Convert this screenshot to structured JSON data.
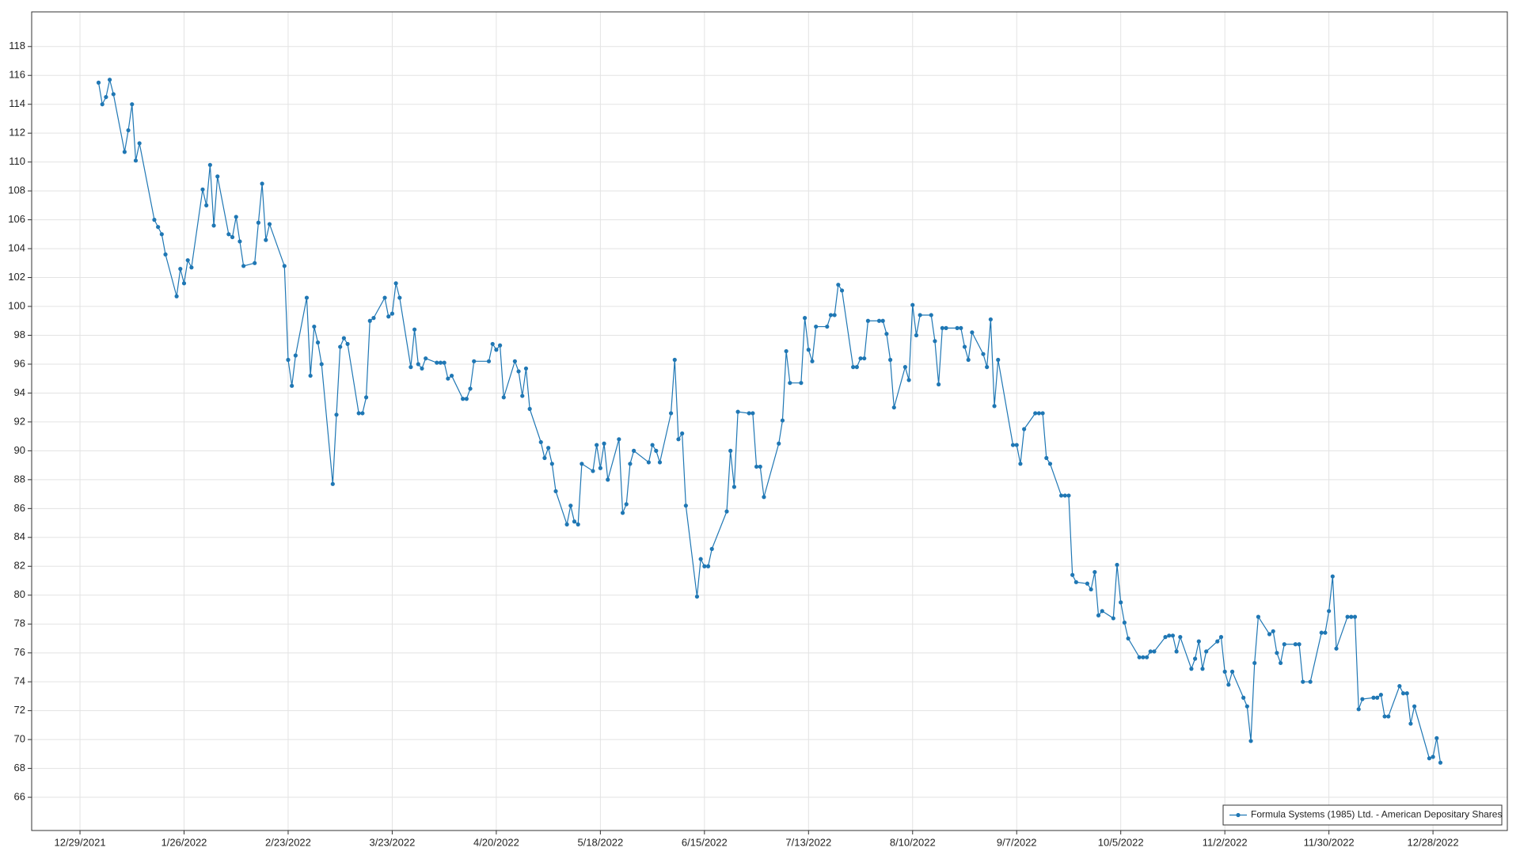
{
  "chart_data": {
    "type": "line",
    "x": [
      "2022-01-03",
      "2022-01-04",
      "2022-01-05",
      "2022-01-06",
      "2022-01-07",
      "2022-01-10",
      "2022-01-11",
      "2022-01-12",
      "2022-01-13",
      "2022-01-14",
      "2022-01-18",
      "2022-01-19",
      "2022-01-20",
      "2022-01-21",
      "2022-01-24",
      "2022-01-25",
      "2022-01-26",
      "2022-01-27",
      "2022-01-28",
      "2022-01-31",
      "2022-02-01",
      "2022-02-02",
      "2022-02-03",
      "2022-02-04",
      "2022-02-07",
      "2022-02-08",
      "2022-02-09",
      "2022-02-10",
      "2022-02-11",
      "2022-02-14",
      "2022-02-15",
      "2022-02-16",
      "2022-02-17",
      "2022-02-18",
      "2022-02-22",
      "2022-02-23",
      "2022-02-24",
      "2022-02-25",
      "2022-02-28",
      "2022-03-01",
      "2022-03-02",
      "2022-03-03",
      "2022-03-04",
      "2022-03-07",
      "2022-03-08",
      "2022-03-09",
      "2022-03-10",
      "2022-03-11",
      "2022-03-14",
      "2022-03-15",
      "2022-03-16",
      "2022-03-17",
      "2022-03-18",
      "2022-03-21",
      "2022-03-22",
      "2022-03-23",
      "2022-03-24",
      "2022-03-25",
      "2022-03-28",
      "2022-03-29",
      "2022-03-30",
      "2022-03-31",
      "2022-04-01",
      "2022-04-04",
      "2022-04-05",
      "2022-04-06",
      "2022-04-07",
      "2022-04-08",
      "2022-04-11",
      "2022-04-12",
      "2022-04-13",
      "2022-04-14",
      "2022-04-18",
      "2022-04-19",
      "2022-04-20",
      "2022-04-21",
      "2022-04-22",
      "2022-04-25",
      "2022-04-26",
      "2022-04-27",
      "2022-04-28",
      "2022-04-29",
      "2022-05-02",
      "2022-05-03",
      "2022-05-04",
      "2022-05-05",
      "2022-05-06",
      "2022-05-09",
      "2022-05-10",
      "2022-05-11",
      "2022-05-12",
      "2022-05-13",
      "2022-05-16",
      "2022-05-17",
      "2022-05-18",
      "2022-05-19",
      "2022-05-20",
      "2022-05-23",
      "2022-05-24",
      "2022-05-25",
      "2022-05-26",
      "2022-05-27",
      "2022-05-31",
      "2022-06-01",
      "2022-06-02",
      "2022-06-03",
      "2022-06-06",
      "2022-06-07",
      "2022-06-08",
      "2022-06-09",
      "2022-06-10",
      "2022-06-13",
      "2022-06-14",
      "2022-06-15",
      "2022-06-16",
      "2022-06-17",
      "2022-06-21",
      "2022-06-22",
      "2022-06-23",
      "2022-06-24",
      "2022-06-27",
      "2022-06-28",
      "2022-06-29",
      "2022-06-30",
      "2022-07-01",
      "2022-07-05",
      "2022-07-06",
      "2022-07-07",
      "2022-07-08",
      "2022-07-11",
      "2022-07-12",
      "2022-07-13",
      "2022-07-14",
      "2022-07-15",
      "2022-07-18",
      "2022-07-19",
      "2022-07-20",
      "2022-07-21",
      "2022-07-22",
      "2022-07-25",
      "2022-07-26",
      "2022-07-27",
      "2022-07-28",
      "2022-07-29",
      "2022-08-01",
      "2022-08-02",
      "2022-08-03",
      "2022-08-04",
      "2022-08-05",
      "2022-08-08",
      "2022-08-09",
      "2022-08-10",
      "2022-08-11",
      "2022-08-12",
      "2022-08-15",
      "2022-08-16",
      "2022-08-17",
      "2022-08-18",
      "2022-08-19",
      "2022-08-22",
      "2022-08-23",
      "2022-08-24",
      "2022-08-25",
      "2022-08-26",
      "2022-08-29",
      "2022-08-30",
      "2022-08-31",
      "2022-09-01",
      "2022-09-02",
      "2022-09-06",
      "2022-09-07",
      "2022-09-08",
      "2022-09-09",
      "2022-09-12",
      "2022-09-13",
      "2022-09-14",
      "2022-09-15",
      "2022-09-16",
      "2022-09-19",
      "2022-09-20",
      "2022-09-21",
      "2022-09-22",
      "2022-09-23",
      "2022-09-26",
      "2022-09-27",
      "2022-09-28",
      "2022-09-29",
      "2022-09-30",
      "2022-10-03",
      "2022-10-04",
      "2022-10-05",
      "2022-10-06",
      "2022-10-07",
      "2022-10-10",
      "2022-10-11",
      "2022-10-12",
      "2022-10-13",
      "2022-10-14",
      "2022-10-17",
      "2022-10-18",
      "2022-10-19",
      "2022-10-20",
      "2022-10-21",
      "2022-10-24",
      "2022-10-25",
      "2022-10-26",
      "2022-10-27",
      "2022-10-28",
      "2022-10-31",
      "2022-11-01",
      "2022-11-02",
      "2022-11-03",
      "2022-11-04",
      "2022-11-07",
      "2022-11-08",
      "2022-11-09",
      "2022-11-10",
      "2022-11-11",
      "2022-11-14",
      "2022-11-15",
      "2022-11-16",
      "2022-11-17",
      "2022-11-18",
      "2022-11-21",
      "2022-11-22",
      "2022-11-23",
      "2022-11-25",
      "2022-11-28",
      "2022-11-29",
      "2022-11-30",
      "2022-12-01",
      "2022-12-02",
      "2022-12-05",
      "2022-12-06",
      "2022-12-07",
      "2022-12-08",
      "2022-12-09",
      "2022-12-12",
      "2022-12-13",
      "2022-12-14",
      "2022-12-15",
      "2022-12-16",
      "2022-12-19",
      "2022-12-20",
      "2022-12-21",
      "2022-12-22",
      "2022-12-23",
      "2022-12-27",
      "2022-12-28",
      "2022-12-29",
      "2022-12-30"
    ],
    "series": [
      {
        "name": "Formula Systems (1985) Ltd. - American Depositary Shares",
        "color": "#1f77b4",
        "values": [
          115.5,
          114.0,
          114.5,
          115.7,
          114.7,
          110.7,
          112.2,
          114.0,
          110.1,
          111.3,
          106.0,
          105.5,
          105.0,
          103.6,
          100.7,
          102.6,
          101.6,
          103.2,
          102.7,
          108.1,
          107.0,
          109.8,
          105.6,
          109.0,
          105.0,
          104.8,
          106.2,
          104.5,
          102.8,
          103.0,
          105.8,
          108.5,
          104.6,
          105.7,
          102.8,
          96.3,
          94.5,
          96.6,
          100.6,
          95.2,
          98.6,
          97.5,
          96.0,
          87.7,
          92.5,
          97.2,
          97.8,
          97.4,
          92.6,
          92.6,
          93.7,
          99.0,
          99.2,
          100.6,
          99.3,
          99.5,
          101.6,
          100.6,
          95.8,
          98.4,
          96.0,
          95.7,
          96.4,
          96.1,
          96.1,
          96.1,
          95.0,
          95.2,
          93.6,
          93.6,
          94.3,
          96.2,
          96.2,
          97.4,
          97.0,
          97.3,
          93.7,
          96.2,
          95.5,
          93.8,
          95.7,
          92.9,
          90.6,
          89.5,
          90.2,
          89.1,
          87.2,
          84.9,
          86.2,
          85.1,
          84.9,
          89.1,
          88.6,
          90.4,
          88.8,
          90.5,
          88.0,
          90.8,
          85.7,
          86.3,
          89.1,
          90.0,
          89.2,
          90.4,
          90.0,
          89.2,
          92.6,
          96.3,
          90.8,
          91.2,
          86.2,
          79.9,
          82.5,
          82.0,
          82.0,
          83.2,
          85.8,
          90.0,
          87.5,
          92.7,
          92.6,
          92.6,
          88.9,
          88.9,
          86.8,
          90.5,
          92.1,
          96.9,
          94.7,
          94.7,
          99.2,
          97.0,
          96.2,
          98.6,
          98.6,
          99.4,
          99.4,
          101.5,
          101.1,
          95.8,
          95.8,
          96.4,
          96.4,
          99.0,
          99.0,
          99.0,
          98.1,
          96.3,
          93.0,
          95.8,
          94.9,
          100.1,
          98.0,
          99.4,
          99.4,
          97.6,
          94.6,
          98.5,
          98.5,
          98.5,
          98.5,
          97.2,
          96.3,
          98.2,
          96.7,
          95.8,
          99.1,
          93.1,
          96.3,
          90.4,
          90.4,
          89.1,
          91.5,
          92.6,
          92.6,
          92.6,
          89.5,
          89.1,
          86.9,
          86.9,
          86.9,
          81.4,
          80.9,
          80.8,
          80.4,
          81.6,
          78.6,
          78.9,
          78.4,
          82.1,
          79.5,
          78.1,
          77.0,
          75.7,
          75.7,
          75.7,
          76.1,
          76.1,
          77.1,
          77.2,
          77.2,
          76.1,
          77.1,
          74.9,
          75.6,
          76.8,
          74.9,
          76.1,
          76.8,
          77.1,
          74.7,
          73.8,
          74.7,
          72.9,
          72.3,
          69.9,
          75.3,
          78.5,
          77.3,
          77.5,
          76.0,
          75.3,
          76.6,
          76.6,
          76.6,
          74.0,
          74.0,
          77.4,
          77.4,
          78.9,
          81.3,
          76.3,
          78.5,
          78.5,
          78.5,
          72.1,
          72.8,
          72.9,
          72.9,
          73.1,
          71.6,
          71.6,
          73.7,
          73.2,
          73.2,
          71.1,
          72.3,
          68.7,
          68.8,
          70.1,
          68.4
        ]
      }
    ],
    "xlim": [
      "2021-12-16",
      "2023-01-17"
    ],
    "xticks": [
      {
        "value": "2021-12-29",
        "label": "12/29/2021"
      },
      {
        "value": "2022-01-26",
        "label": "1/26/2022"
      },
      {
        "value": "2022-02-23",
        "label": "2/23/2022"
      },
      {
        "value": "2022-03-23",
        "label": "3/23/2022"
      },
      {
        "value": "2022-04-20",
        "label": "4/20/2022"
      },
      {
        "value": "2022-05-18",
        "label": "5/18/2022"
      },
      {
        "value": "2022-06-15",
        "label": "6/15/2022"
      },
      {
        "value": "2022-07-13",
        "label": "7/13/2022"
      },
      {
        "value": "2022-08-10",
        "label": "8/10/2022"
      },
      {
        "value": "2022-09-07",
        "label": "9/7/2022"
      },
      {
        "value": "2022-10-05",
        "label": "10/5/2022"
      },
      {
        "value": "2022-11-02",
        "label": "11/2/2022"
      },
      {
        "value": "2022-11-30",
        "label": "11/30/2022"
      },
      {
        "value": "2022-12-28",
        "label": "12/28/2022"
      }
    ],
    "ylim": [
      63.7,
      120.4
    ],
    "yticks": [
      66,
      68,
      70,
      72,
      74,
      76,
      78,
      80,
      82,
      84,
      86,
      88,
      90,
      92,
      94,
      96,
      98,
      100,
      102,
      104,
      106,
      108,
      110,
      112,
      114,
      116,
      118
    ],
    "grid": true,
    "legend": "lower right"
  }
}
